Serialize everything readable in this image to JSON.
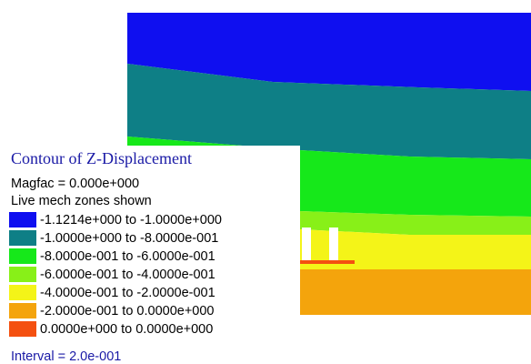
{
  "legend": {
    "title": "Contour of Z-Displacement",
    "magfac": "Magfac =  0.000e+000",
    "zones_note": "Live mech zones shown",
    "ranges": [
      {
        "label": "-1.1214e+000 to -1.0000e+000",
        "color": "#0f0ff0"
      },
      {
        "label": "-1.0000e+000 to -8.0000e-001",
        "color": "#0e7f86"
      },
      {
        "label": "-8.0000e-001 to -6.0000e-001",
        "color": "#16e81a"
      },
      {
        "label": "-6.0000e-001 to -4.0000e-001",
        "color": "#88f018"
      },
      {
        "label": "-4.0000e-001 to -2.0000e-001",
        "color": "#f4f418"
      },
      {
        "label": "-2.0000e-001 to  0.0000e+000",
        "color": "#f4a40c"
      },
      {
        "label": " 0.0000e+000 to  0.0000e+000",
        "color": "#f45010"
      }
    ],
    "interval": "Interval =  2.0e-001"
  }
}
